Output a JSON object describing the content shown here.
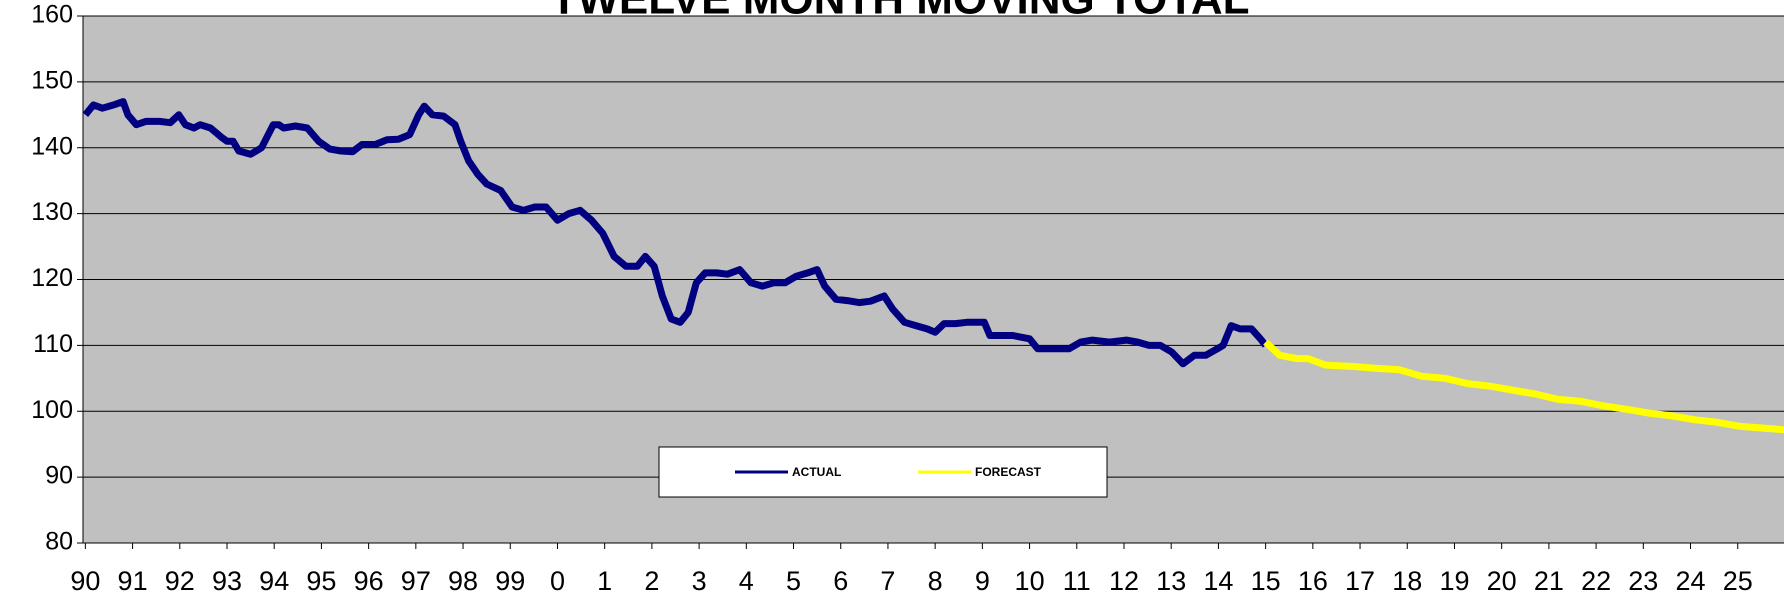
{
  "chart_data": {
    "type": "line",
    "title": "TWELVE MONTH MOVING TOTAL",
    "xlim": [
      1989.95,
      2025.98
    ],
    "ylim": [
      80,
      160
    ],
    "yticks": [
      80,
      90,
      100,
      110,
      120,
      130,
      140,
      150,
      160
    ],
    "xticks": [
      {
        "value": 1990,
        "label": "90"
      },
      {
        "value": 1991,
        "label": "91"
      },
      {
        "value": 1992,
        "label": "92"
      },
      {
        "value": 1993,
        "label": "93"
      },
      {
        "value": 1994,
        "label": "94"
      },
      {
        "value": 1995,
        "label": "95"
      },
      {
        "value": 1996,
        "label": "96"
      },
      {
        "value": 1997,
        "label": "97"
      },
      {
        "value": 1998,
        "label": "98"
      },
      {
        "value": 1999,
        "label": "99"
      },
      {
        "value": 2000,
        "label": "0"
      },
      {
        "value": 2001,
        "label": "1"
      },
      {
        "value": 2002,
        "label": "2"
      },
      {
        "value": 2003,
        "label": "3"
      },
      {
        "value": 2004,
        "label": "4"
      },
      {
        "value": 2005,
        "label": "5"
      },
      {
        "value": 2006,
        "label": "6"
      },
      {
        "value": 2007,
        "label": "7"
      },
      {
        "value": 2008,
        "label": "8"
      },
      {
        "value": 2009,
        "label": "9"
      },
      {
        "value": 2010,
        "label": "10"
      },
      {
        "value": 2011,
        "label": "11"
      },
      {
        "value": 2012,
        "label": "12"
      },
      {
        "value": 2013,
        "label": "13"
      },
      {
        "value": 2014,
        "label": "14"
      },
      {
        "value": 2015,
        "label": "15"
      },
      {
        "value": 2016,
        "label": "16"
      },
      {
        "value": 2017,
        "label": "17"
      },
      {
        "value": 2018,
        "label": "18"
      },
      {
        "value": 2019,
        "label": "19"
      },
      {
        "value": 2020,
        "label": "20"
      },
      {
        "value": 2021,
        "label": "21"
      },
      {
        "value": 2022,
        "label": "22"
      },
      {
        "value": 2023,
        "label": "23"
      },
      {
        "value": 2024,
        "label": "24"
      },
      {
        "value": 2025,
        "label": "25"
      }
    ],
    "grid": true,
    "series": [
      {
        "name": "ACTUAL",
        "color": "#000080",
        "x": [
          1990.0,
          1990.17,
          1990.36,
          1990.6,
          1990.8,
          1990.9,
          1991.08,
          1991.28,
          1991.57,
          1991.8,
          1991.98,
          1992.12,
          1992.3,
          1992.43,
          1992.65,
          1992.9,
          1993.0,
          1993.13,
          1993.25,
          1993.5,
          1993.73,
          1993.98,
          1994.1,
          1994.2,
          1994.45,
          1994.7,
          1994.94,
          1995.18,
          1995.42,
          1995.66,
          1995.86,
          1996.02,
          1996.14,
          1996.39,
          1996.63,
          1996.87,
          1997.06,
          1997.18,
          1997.35,
          1997.59,
          1997.83,
          1997.95,
          1998.12,
          1998.31,
          1998.5,
          1998.8,
          1999.04,
          1999.28,
          1999.52,
          1999.76,
          2000.0,
          2000.24,
          2000.48,
          2000.72,
          2000.96,
          2001.2,
          2001.45,
          2001.69,
          2001.86,
          2002.05,
          2002.22,
          2002.41,
          2002.6,
          2002.77,
          2002.94,
          2003.13,
          2003.37,
          2003.6,
          2003.86,
          2004.1,
          2004.34,
          2004.58,
          2004.82,
          2005.06,
          2005.3,
          2005.5,
          2005.66,
          2005.9,
          2006.14,
          2006.39,
          2006.63,
          2006.92,
          2007.1,
          2007.35,
          2007.59,
          2007.83,
          2008.0,
          2008.19,
          2008.43,
          2008.67,
          2009.04,
          2009.16,
          2009.4,
          2009.64,
          2010.0,
          2010.17,
          2010.48,
          2010.84,
          2011.08,
          2011.33,
          2011.69,
          2012.05,
          2012.29,
          2012.53,
          2012.77,
          2013.01,
          2013.25,
          2013.49,
          2013.73,
          2013.98,
          2014.1,
          2014.27,
          2014.46,
          2014.7,
          2014.89,
          2015.0
        ],
        "values": [
          145,
          146.5,
          146,
          146.5,
          147,
          145,
          143.5,
          144,
          144,
          143.8,
          145,
          143.5,
          143,
          143.5,
          143,
          141.5,
          141,
          141,
          139.5,
          139,
          140,
          143.5,
          143.5,
          143,
          143.3,
          143,
          141,
          139.8,
          139.5,
          139.4,
          140.5,
          140.5,
          140.5,
          141.2,
          141.3,
          142,
          145,
          146.3,
          145,
          144.8,
          143.5,
          141,
          138,
          136,
          134.5,
          133.5,
          131,
          130.5,
          131,
          131,
          129,
          130,
          130.5,
          129,
          127,
          123.5,
          122,
          122,
          123.5,
          122,
          117.5,
          114,
          113.5,
          115,
          119.5,
          121,
          121,
          120.8,
          121.5,
          119.5,
          119,
          119.5,
          119.5,
          120.5,
          121,
          121.5,
          119,
          117,
          116.8,
          116.5,
          116.7,
          117.5,
          115.5,
          113.5,
          113,
          112.5,
          112,
          113.3,
          113.3,
          113.5,
          113.5,
          111.5,
          111.5,
          111.5,
          111,
          109.5,
          109.5,
          109.5,
          110.5,
          110.8,
          110.5,
          110.8,
          110.5,
          110,
          110,
          109,
          107.2,
          108.5,
          108.5,
          109.5,
          110,
          113,
          112.5,
          112.5,
          111,
          110
        ]
      },
      {
        "name": "FORECAST",
        "color": "#ffff00",
        "x": [
          2015.0,
          2015.3,
          2015.66,
          2015.9,
          2016.27,
          2016.87,
          2017.35,
          2017.83,
          2018.31,
          2018.8,
          2019.28,
          2019.76,
          2020.24,
          2020.72,
          2021.2,
          2021.69,
          2022.17,
          2022.65,
          2023.13,
          2023.61,
          2024.1,
          2024.58,
          2025.06,
          2025.98
        ],
        "values": [
          110.5,
          108.5,
          108,
          108,
          107,
          106.8,
          106.5,
          106.3,
          105.3,
          105,
          104.2,
          103.8,
          103.2,
          102.6,
          101.8,
          101.5,
          100.8,
          100.3,
          99.7,
          99.3,
          98.7,
          98.3,
          97.7,
          97.2
        ]
      }
    ]
  }
}
